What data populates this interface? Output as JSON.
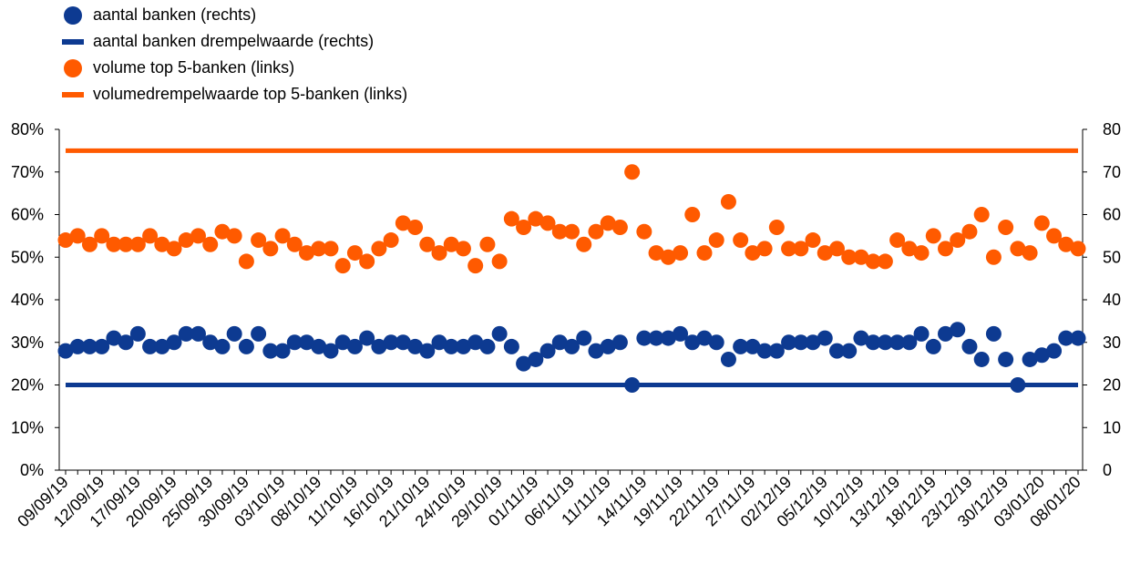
{
  "chart_data": {
    "type": "scatter",
    "left_axis": {
      "ylim": [
        0,
        80
      ],
      "ticks": [
        "0%",
        "10%",
        "20%",
        "30%",
        "40%",
        "50%",
        "60%",
        "70%",
        "80%"
      ]
    },
    "right_axis": {
      "ylim": [
        0,
        80
      ],
      "ticks": [
        "0",
        "10",
        "20",
        "30",
        "40",
        "50",
        "60",
        "70",
        "80"
      ]
    },
    "x_tick_labels": [
      "09/09/19",
      "12/09/19",
      "17/09/19",
      "20/09/19",
      "25/09/19",
      "30/09/19",
      "03/10/19",
      "08/10/19",
      "11/10/19",
      "16/10/19",
      "21/10/19",
      "24/10/19",
      "29/10/19",
      "01/11/19",
      "06/11/19",
      "11/11/19",
      "14/11/19",
      "19/11/19",
      "22/11/19",
      "27/11/19",
      "02/12/19",
      "05/12/19",
      "10/12/19",
      "13/12/19",
      "18/12/19",
      "23/12/19",
      "30/12/19",
      "03/01/20",
      "08/01/20"
    ],
    "legend_position": "top-left",
    "grid": false,
    "series": [
      {
        "name": "aantal banken (rechts)",
        "kind": "points",
        "axis": "right",
        "color": "#0d3a91",
        "values": [
          28,
          29,
          29,
          29,
          31,
          30,
          32,
          29,
          29,
          30,
          32,
          32,
          30,
          29,
          32,
          29,
          32,
          28,
          28,
          30,
          30,
          29,
          28,
          30,
          29,
          31,
          29,
          30,
          30,
          29,
          28,
          30,
          29,
          29,
          30,
          29,
          32,
          29,
          25,
          26,
          28,
          30,
          29,
          31,
          28,
          29,
          30,
          20,
          31,
          31,
          31,
          32,
          30,
          31,
          30,
          26,
          29,
          29,
          28,
          28,
          30,
          30,
          30,
          31,
          28,
          28,
          31,
          30,
          30,
          30,
          30,
          32,
          29,
          32,
          33,
          29,
          26,
          32,
          26,
          20,
          26,
          27,
          28,
          31,
          31
        ]
      },
      {
        "name": "aantal banken drempelwaarde (rechts)",
        "kind": "line",
        "axis": "right",
        "color": "#0d3a91",
        "value": 20
      },
      {
        "name": "volume top 5-banken (links)",
        "kind": "points",
        "axis": "left",
        "color": "#ff5a00",
        "values": [
          54,
          55,
          53,
          55,
          53,
          53,
          53,
          55,
          53,
          52,
          54,
          55,
          53,
          56,
          55,
          49,
          54,
          52,
          55,
          53,
          51,
          52,
          52,
          48,
          51,
          49,
          52,
          54,
          58,
          57,
          53,
          51,
          53,
          52,
          48,
          53,
          49,
          59,
          57,
          59,
          58,
          56,
          56,
          53,
          56,
          58,
          57,
          70,
          56,
          51,
          50,
          51,
          60,
          51,
          54,
          63,
          54,
          51,
          52,
          57,
          52,
          52,
          54,
          51,
          52,
          50,
          50,
          49,
          49,
          54,
          52,
          51,
          55,
          52,
          54,
          56,
          60,
          50,
          57,
          52,
          51,
          58,
          55,
          53,
          52
        ]
      },
      {
        "name": "volumedrempelwaarde top 5-banken (links)",
        "kind": "line",
        "axis": "left",
        "color": "#ff5a00",
        "value": 75
      }
    ]
  }
}
